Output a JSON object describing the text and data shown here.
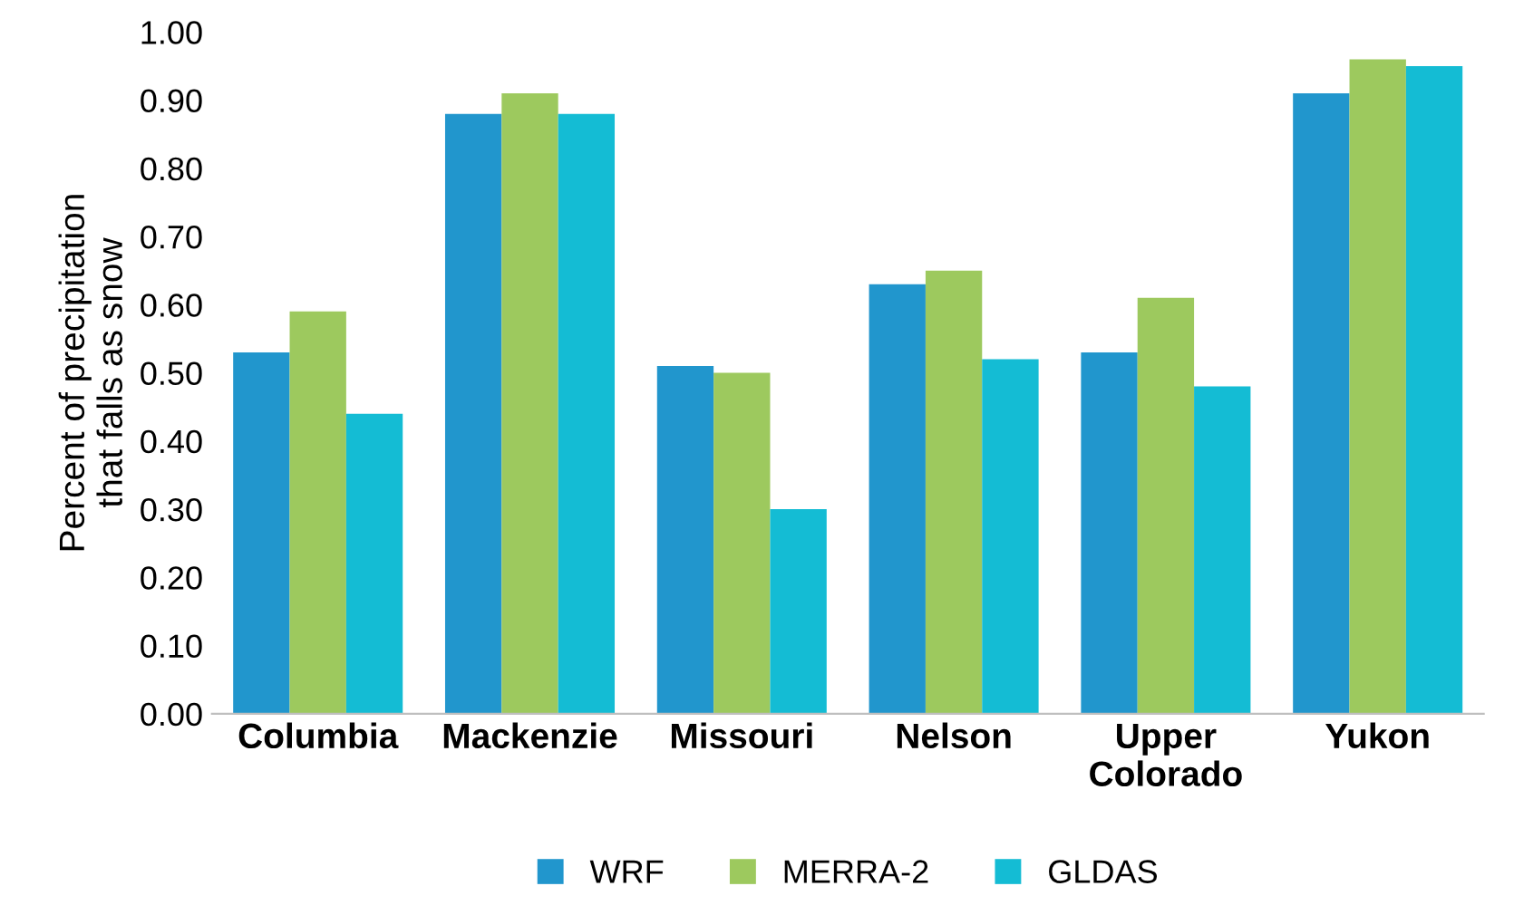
{
  "chart_data": {
    "type": "bar",
    "ylabel": "Percent of precipitation\nthat falls as snow",
    "categories": [
      "Columbia",
      "Mackenzie",
      "Missouri",
      "Nelson",
      "Upper\nColorado",
      "Yukon"
    ],
    "series": [
      {
        "name": "WRF",
        "color": "#2196cd",
        "values": [
          0.53,
          0.88,
          0.51,
          0.63,
          0.53,
          0.91
        ]
      },
      {
        "name": "MERRA-2",
        "color": "#9dc95e",
        "values": [
          0.59,
          0.91,
          0.5,
          0.65,
          0.61,
          0.96
        ]
      },
      {
        "name": "GLDAS",
        "color": "#14bcd4",
        "values": [
          0.44,
          0.88,
          0.3,
          0.52,
          0.48,
          0.95
        ]
      }
    ],
    "ylim": [
      0,
      1
    ],
    "yticks": [
      {
        "value": 0,
        "label": "0.00"
      },
      {
        "value": 0.1,
        "label": "0.10"
      },
      {
        "value": 0.2,
        "label": "0.20"
      },
      {
        "value": 0.3,
        "label": "0.30"
      },
      {
        "value": 0.4,
        "label": "0.40"
      },
      {
        "value": 0.5,
        "label": "0.50"
      },
      {
        "value": 0.6,
        "label": "0.60"
      },
      {
        "value": 0.7,
        "label": "0.70"
      },
      {
        "value": 0.8,
        "label": "0.80"
      },
      {
        "value": 0.9,
        "label": "0.90"
      },
      {
        "value": 1,
        "label": "1.00"
      }
    ],
    "grid": false,
    "legend": "bottom"
  }
}
